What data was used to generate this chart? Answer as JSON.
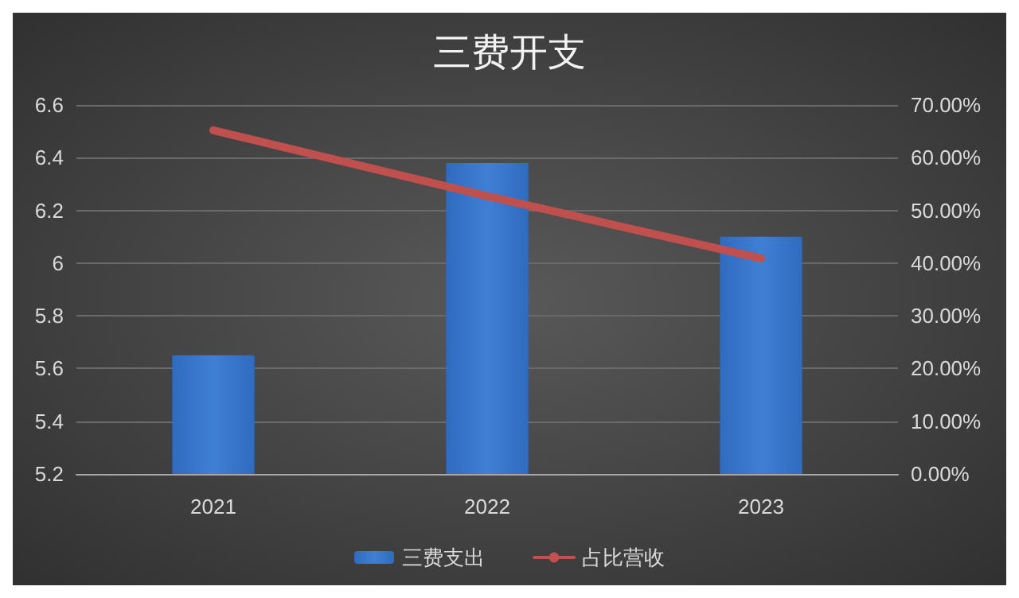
{
  "chart_data": {
    "type": "bar",
    "title": "三费开支",
    "categories": [
      "2021",
      "2022",
      "2023"
    ],
    "series": [
      {
        "name": "三费支出",
        "color": "#3f7fd4",
        "values": [
          5.65,
          6.38,
          6.1
        ]
      },
      {
        "name": "占比营收",
        "type": "line",
        "axis": "y2",
        "color": "#c0504d",
        "values": [
          65.2,
          52.7,
          40.9
        ]
      }
    ],
    "ylim": [
      5.2,
      6.6
    ],
    "yticks": [
      5.2,
      5.4,
      5.6,
      5.8,
      6,
      6.2,
      6.4,
      6.6
    ],
    "y2lim": [
      0,
      70
    ],
    "y2ticks": [
      {
        "value": 0,
        "label": "0.00%"
      },
      {
        "value": 10,
        "label": "10.00%"
      },
      {
        "value": 20,
        "label": "20.00%"
      },
      {
        "value": 30,
        "label": "30.00%"
      },
      {
        "value": 40,
        "label": "40.00%"
      },
      {
        "value": 50,
        "label": "50.00%"
      },
      {
        "value": 60,
        "label": "60.00%"
      },
      {
        "value": 70,
        "label": "70.00%"
      }
    ],
    "grid": "y",
    "legend": "bottom",
    "marker": "none",
    "line_style": "solid"
  }
}
